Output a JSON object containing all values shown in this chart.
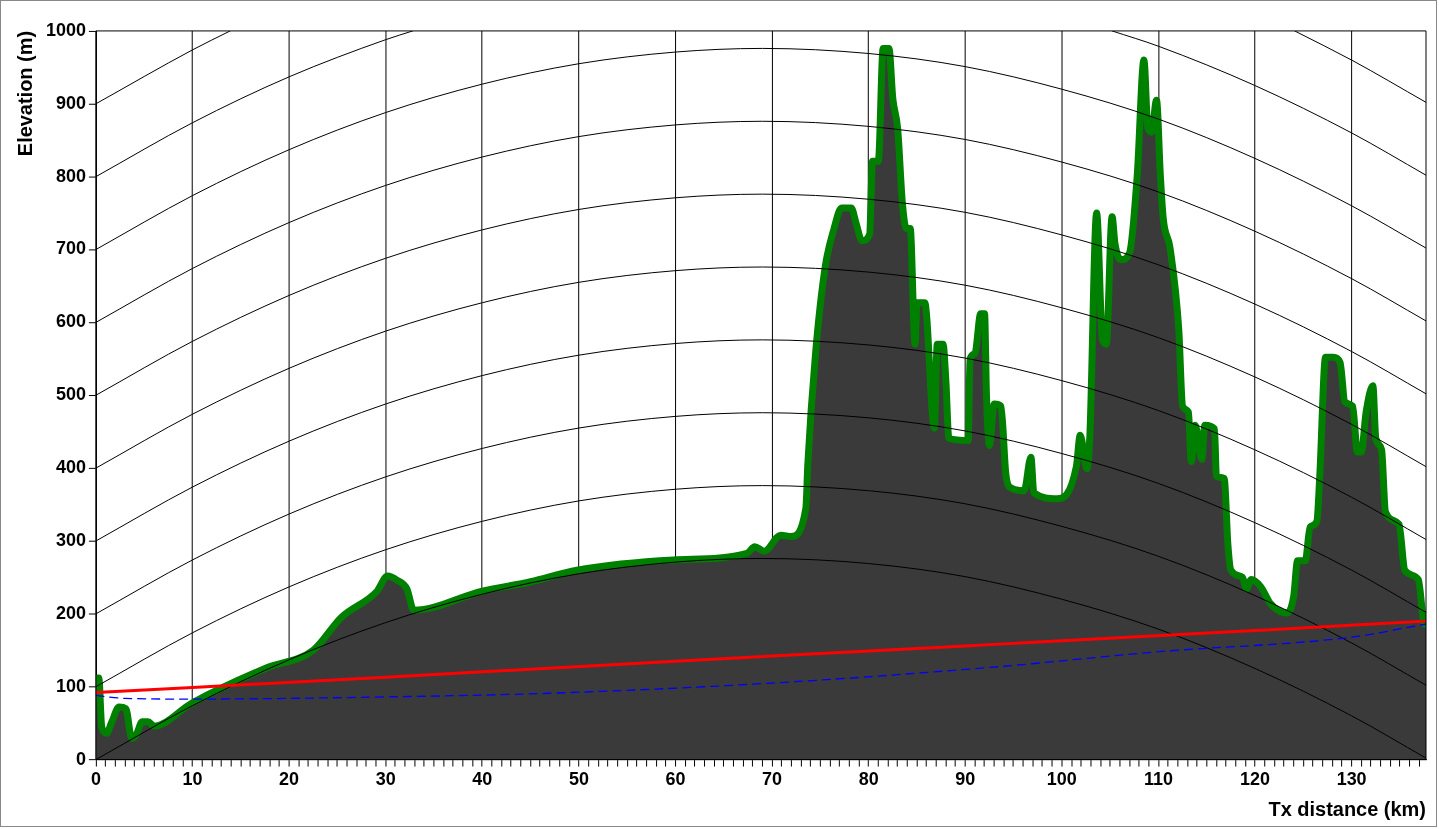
{
  "chart_data": {
    "type": "area",
    "xlabel": "Tx distance (km)",
    "ylabel": "Elevation (m)",
    "xlim": [
      0,
      137.7
    ],
    "ylim": [
      0,
      1000
    ],
    "xticks": [
      0,
      {
        "value": 1,
        "label": null
      },
      {
        "value": 2,
        "label": null
      },
      {
        "value": 3,
        "label": null
      },
      {
        "value": 4,
        "label": null
      },
      {
        "value": 5,
        "label": null
      },
      {
        "value": 6,
        "label": null
      },
      {
        "value": 7,
        "label": null
      },
      {
        "value": 8,
        "label": null
      },
      {
        "value": 9,
        "label": null
      },
      10,
      {
        "value": 11,
        "label": null
      },
      {
        "value": 12,
        "label": null
      },
      {
        "value": 13,
        "label": null
      },
      {
        "value": 14,
        "label": null
      },
      {
        "value": 15,
        "label": null
      },
      {
        "value": 16,
        "label": null
      },
      {
        "value": 17,
        "label": null
      },
      {
        "value": 18,
        "label": null
      },
      {
        "value": 19,
        "label": null
      },
      20,
      {
        "value": 21,
        "label": null
      },
      {
        "value": 22,
        "label": null
      },
      {
        "value": 23,
        "label": null
      },
      {
        "value": 24,
        "label": null
      },
      {
        "value": 25,
        "label": null
      },
      {
        "value": 26,
        "label": null
      },
      {
        "value": 27,
        "label": null
      },
      {
        "value": 28,
        "label": null
      },
      {
        "value": 29,
        "label": null
      },
      30,
      {
        "value": 31,
        "label": null
      },
      {
        "value": 32,
        "label": null
      },
      {
        "value": 33,
        "label": null
      },
      {
        "value": 34,
        "label": null
      },
      {
        "value": 35,
        "label": null
      },
      {
        "value": 36,
        "label": null
      },
      {
        "value": 37,
        "label": null
      },
      {
        "value": 38,
        "label": null
      },
      {
        "value": 39,
        "label": null
      },
      40,
      {
        "value": 41,
        "label": null
      },
      {
        "value": 42,
        "label": null
      },
      {
        "value": 43,
        "label": null
      },
      {
        "value": 44,
        "label": null
      },
      {
        "value": 45,
        "label": null
      },
      {
        "value": 46,
        "label": null
      },
      {
        "value": 47,
        "label": null
      },
      {
        "value": 48,
        "label": null
      },
      {
        "value": 49,
        "label": null
      },
      50,
      {
        "value": 51,
        "label": null
      },
      {
        "value": 52,
        "label": null
      },
      {
        "value": 53,
        "label": null
      },
      {
        "value": 54,
        "label": null
      },
      {
        "value": 55,
        "label": null
      },
      {
        "value": 56,
        "label": null
      },
      {
        "value": 57,
        "label": null
      },
      {
        "value": 58,
        "label": null
      },
      {
        "value": 59,
        "label": null
      },
      60,
      {
        "value": 61,
        "label": null
      },
      {
        "value": 62,
        "label": null
      },
      {
        "value": 63,
        "label": null
      },
      {
        "value": 64,
        "label": null
      },
      {
        "value": 65,
        "label": null
      },
      {
        "value": 66,
        "label": null
      },
      {
        "value": 67,
        "label": null
      },
      {
        "value": 68,
        "label": null
      },
      {
        "value": 69,
        "label": null
      },
      70,
      {
        "value": 71,
        "label": null
      },
      {
        "value": 72,
        "label": null
      },
      {
        "value": 73,
        "label": null
      },
      {
        "value": 74,
        "label": null
      },
      {
        "value": 75,
        "label": null
      },
      {
        "value": 76,
        "label": null
      },
      {
        "value": 77,
        "label": null
      },
      {
        "value": 78,
        "label": null
      },
      {
        "value": 79,
        "label": null
      },
      80,
      {
        "value": 81,
        "label": null
      },
      {
        "value": 82,
        "label": null
      },
      {
        "value": 83,
        "label": null
      },
      {
        "value": 84,
        "label": null
      },
      {
        "value": 85,
        "label": null
      },
      {
        "value": 86,
        "label": null
      },
      {
        "value": 87,
        "label": null
      },
      {
        "value": 88,
        "label": null
      },
      {
        "value": 89,
        "label": null
      },
      90,
      {
        "value": 91,
        "label": null
      },
      {
        "value": 92,
        "label": null
      },
      {
        "value": 93,
        "label": null
      },
      {
        "value": 94,
        "label": null
      },
      {
        "value": 95,
        "label": null
      },
      {
        "value": 96,
        "label": null
      },
      {
        "value": 97,
        "label": null
      },
      {
        "value": 98,
        "label": null
      },
      {
        "value": 99,
        "label": null
      },
      100,
      {
        "value": 101,
        "label": null
      },
      {
        "value": 102,
        "label": null
      },
      {
        "value": 103,
        "label": null
      },
      {
        "value": 104,
        "label": null
      },
      {
        "value": 105,
        "label": null
      },
      {
        "value": 106,
        "label": null
      },
      {
        "value": 107,
        "label": null
      },
      {
        "value": 108,
        "label": null
      },
      {
        "value": 109,
        "label": null
      },
      110,
      {
        "value": 111,
        "label": null
      },
      {
        "value": 112,
        "label": null
      },
      {
        "value": 113,
        "label": null
      },
      {
        "value": 114,
        "label": null
      },
      {
        "value": 115,
        "label": null
      },
      {
        "value": 116,
        "label": null
      },
      {
        "value": 117,
        "label": null
      },
      {
        "value": 118,
        "label": null
      },
      {
        "value": 119,
        "label": null
      },
      120,
      {
        "value": 121,
        "label": null
      },
      {
        "value": 122,
        "label": null
      },
      {
        "value": 123,
        "label": null
      },
      {
        "value": 124,
        "label": null
      },
      {
        "value": 125,
        "label": null
      },
      {
        "value": 126,
        "label": null
      },
      {
        "value": 127,
        "label": null
      },
      {
        "value": 128,
        "label": null
      },
      {
        "value": 129,
        "label": null
      },
      130,
      {
        "value": 131,
        "label": null
      },
      {
        "value": 132,
        "label": null
      },
      {
        "value": 133,
        "label": null
      },
      {
        "value": 134,
        "label": null
      },
      {
        "value": 135,
        "label": null
      },
      {
        "value": 136,
        "label": null
      },
      {
        "value": 137,
        "label": null
      }
    ],
    "yticks": [
      0,
      100,
      200,
      300,
      400,
      500,
      600,
      700,
      800,
      900,
      1000
    ],
    "grid": "x",
    "x": [
      0,
      0.3,
      0.6,
      1.1,
      1.6,
      2.4,
      3.1,
      3.7,
      4.2,
      4.8,
      5.4,
      6.0,
      10,
      17.7,
      22.5,
      25.4,
      29.1,
      30.2,
      31.2,
      32.2,
      32.9,
      40,
      45,
      49.8,
      59.8,
      67.4,
      68.2,
      69.2,
      70.9,
      72,
      73.5,
      73.7,
      74.5,
      75.5,
      76.4,
      77.2,
      78.2,
      78.7,
      79.3,
      80.1,
      80.4,
      81,
      81.5,
      82.1,
      82.5,
      83,
      83.5,
      83.9,
      84.3,
      84.8,
      85,
      85.8,
      86.8,
      87.1,
      87.7,
      88,
      88.3,
      90.3,
      90.5,
      91,
      91.6,
      92,
      92.2,
      92.5,
      93,
      93.7,
      94.2,
      94.7,
      96.1,
      96.8,
      97.1,
      99.5,
      101.5,
      101.9,
      102.6,
      102.9,
      103.6,
      104.2,
      104.6,
      105.2,
      105.5,
      106.1,
      107,
      107.8,
      108.5,
      108.9,
      109.3,
      109.8,
      110.2,
      110.5,
      111.2,
      112.1,
      112.5,
      113.1,
      113.4,
      113.8,
      114.5,
      114.8,
      115.8,
      116,
      116.8,
      117.2,
      117.5,
      118.7,
      119.1,
      119.6,
      120.6,
      121.6,
      123.3,
      124,
      124.4,
      125.2,
      125.7,
      126.4,
      126.7,
      127.3,
      128.1,
      128.8,
      129.3,
      130.1,
      130.6,
      131,
      131.5,
      132.2,
      132.5,
      133.1,
      133.5,
      134.9,
      135.5,
      136.9,
      137.5,
      137.7
    ],
    "series": [
      {
        "type": "line",
        "color": "#ff0000",
        "x": [
          0,
          30,
          60,
          90,
          120,
          137.7
        ],
        "values": [
          92,
          113,
          135,
          156,
          177,
          190
        ]
      },
      {
        "type": "line",
        "color": "#0000ff",
        "line_style": "dashed",
        "x": [
          0,
          3,
          10,
          30,
          47,
          70,
          93,
          110,
          130,
          137.7
        ],
        "values": [
          88,
          84,
          83,
          86,
          91,
          105,
          127,
          148,
          168,
          186
        ]
      },
      {
        "color": "#008000",
        "values": [
          112,
          112,
          45,
          36,
          50,
          72,
          70,
          29,
          35,
          52,
          52,
          46,
          78,
          126,
          150,
          195,
          231,
          252,
          246,
          234,
          205,
          231,
          244,
          260,
          274,
          283,
          292,
          286,
          308,
          306,
          345,
          405,
          557,
          676,
          728,
          757,
          757,
          736,
          712,
          721,
          821,
          821,
          976,
          976,
          907,
          866,
          762,
          729,
          729,
          570,
          627,
          627,
          455,
          570,
          570,
          518,
          441,
          438,
          550,
          557,
          612,
          612,
          498,
          431,
          488,
          485,
          392,
          373,
          369,
          415,
          366,
          358,
          402,
          445,
          399,
          445,
          750,
          576,
          570,
          745,
          708,
          686,
          695,
          801,
          960,
          867,
          861,
          905,
          801,
          742,
          702,
          591,
          485,
          477,
          409,
          459,
          412,
          459,
          454,
          389,
          386,
          293,
          260,
          250,
          234,
          247,
          237,
          214,
          201,
          224,
          273,
          273,
          319,
          327,
          389,
          552,
          552,
          545,
          491,
          485,
          422,
          422,
          477,
          513,
          441,
          425,
          340,
          323,
          260,
          247,
          187,
          185
        ]
      },
      {
        "type": "line",
        "color": "#000000",
        "x": [
          0,
          10,
          20,
          30,
          40,
          50,
          60,
          69,
          80,
          90,
          100,
          110,
          120,
          130,
          137.7
        ],
        "values": [
          0,
          74,
          137,
          188,
          227,
          255,
          271,
          276,
          269,
          251,
          220,
          179,
          125,
          60,
          2
        ]
      },
      {
        "type": "line",
        "color": "#000000",
        "x": [
          0,
          10,
          20,
          30,
          40,
          50,
          60,
          69,
          80,
          90,
          100,
          110,
          120,
          130,
          137.7
        ],
        "values": [
          100,
          174,
          237,
          288,
          327,
          355,
          371,
          376,
          369,
          351,
          320,
          279,
          225,
          160,
          102
        ]
      },
      {
        "type": "line",
        "color": "#000000",
        "x": [
          0,
          10,
          20,
          30,
          40,
          50,
          60,
          69,
          80,
          90,
          100,
          110,
          120,
          130,
          137.7
        ],
        "values": [
          200,
          274,
          337,
          388,
          427,
          455,
          471,
          476,
          469,
          451,
          420,
          379,
          325,
          260,
          202
        ]
      },
      {
        "type": "line",
        "color": "#000000",
        "x": [
          0,
          10,
          20,
          30,
          40,
          50,
          60,
          69,
          80,
          90,
          100,
          110,
          120,
          130,
          137.7
        ],
        "values": [
          300,
          374,
          437,
          488,
          527,
          555,
          571,
          576,
          569,
          551,
          520,
          479,
          425,
          360,
          302
        ]
      },
      {
        "type": "line",
        "color": "#000000",
        "x": [
          0,
          10,
          20,
          30,
          40,
          50,
          60,
          69,
          80,
          90,
          100,
          110,
          120,
          130,
          137.7
        ],
        "values": [
          400,
          474,
          537,
          588,
          627,
          655,
          671,
          676,
          669,
          651,
          620,
          579,
          525,
          460,
          402
        ]
      },
      {
        "type": "line",
        "color": "#000000",
        "x": [
          0,
          10,
          20,
          30,
          40,
          50,
          60,
          69,
          80,
          90,
          100,
          110,
          120,
          130,
          137.7
        ],
        "values": [
          500,
          574,
          637,
          688,
          727,
          755,
          771,
          776,
          769,
          751,
          720,
          679,
          625,
          560,
          502
        ]
      },
      {
        "type": "line",
        "color": "#000000",
        "x": [
          0,
          10,
          20,
          30,
          40,
          50,
          60,
          69,
          80,
          90,
          100,
          110,
          120,
          130,
          137.7
        ],
        "values": [
          600,
          674,
          737,
          788,
          827,
          855,
          871,
          876,
          869,
          851,
          820,
          779,
          725,
          660,
          602
        ]
      },
      {
        "type": "line",
        "color": "#000000",
        "x": [
          0,
          10,
          20,
          30,
          40,
          50,
          60,
          69,
          80,
          90,
          100,
          110,
          120,
          130,
          137.7
        ],
        "values": [
          700,
          774,
          837,
          888,
          927,
          955,
          971,
          976,
          969,
          951,
          920,
          879,
          825,
          760,
          702
        ]
      },
      {
        "type": "line",
        "color": "#000000",
        "x": [
          0,
          10,
          20,
          30,
          32.8,
          69,
          105.2,
          110,
          120,
          130,
          137.7
        ],
        "values": [
          800,
          874,
          937,
          988,
          1000,
          null,
          1000,
          979,
          925,
          860,
          802
        ]
      },
      {
        "type": "line",
        "color": "#000000",
        "x": [
          0,
          10,
          13.9,
          69,
          124.1,
          130,
          137.7
        ],
        "values": [
          900,
          974,
          1000,
          null,
          1000,
          960,
          902
        ]
      }
    ]
  }
}
